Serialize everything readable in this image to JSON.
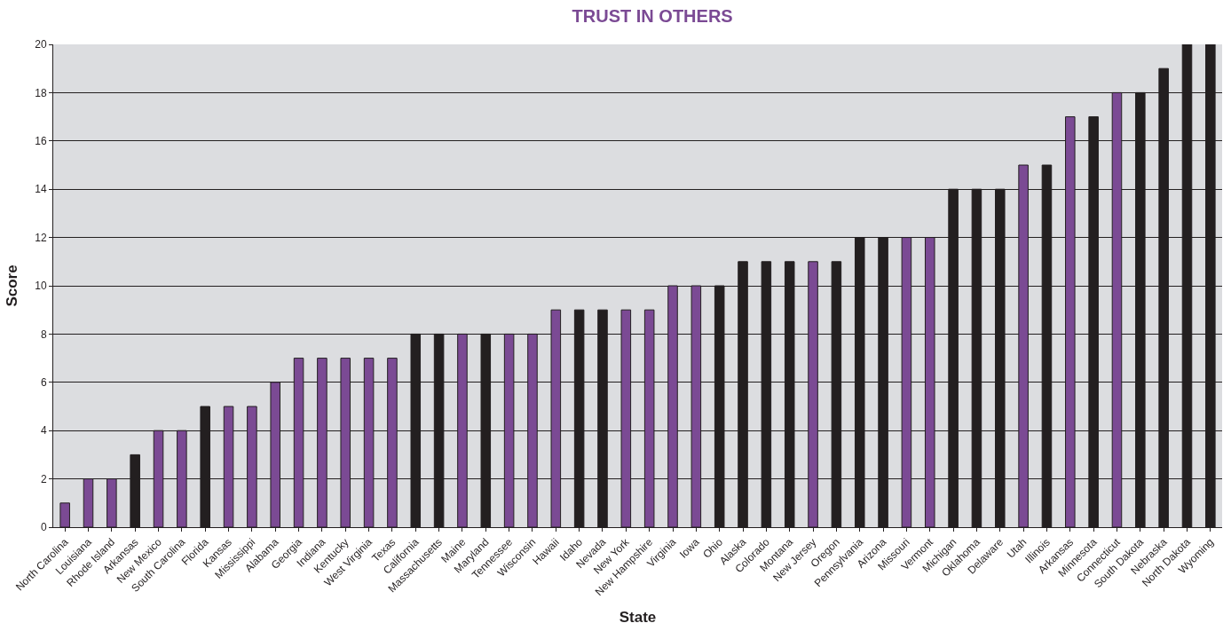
{
  "chart_data": {
    "type": "bar",
    "title": "TRUST IN OTHERS",
    "xlabel": "State",
    "ylabel": "Score",
    "categories": [
      "North Carolina",
      "Louisiana",
      "Rhode Island",
      "Arkansas",
      "New Mexico",
      "South Carolina",
      "Florida",
      "Kansas",
      "Mississippi",
      "Alabama",
      "Georgia",
      "Indiana",
      "Kentucky",
      "West Virginia",
      "Texas",
      "California",
      "Massachusetts",
      "Maine",
      "Maryland",
      "Tennessee",
      "Wisconsin",
      "Hawaii",
      "Idaho",
      "Nevada",
      "New York",
      "New Hampshire",
      "Virginia",
      "Iowa",
      "Ohio",
      "Alaska",
      "Colorado",
      "Montana",
      "New Jersey",
      "Oregon",
      "Pennsylvania",
      "Arizona",
      "Missouri",
      "Vermont",
      "Michigan",
      "Oklahoma",
      "Delaware",
      "Utah",
      "Illinois",
      "Arkansas",
      "Minnesota",
      "Connecticut",
      "South Dakota",
      "Nebraska",
      "North Dakota",
      "Wyoming"
    ],
    "values": [
      1,
      2,
      2,
      3,
      4,
      4,
      5,
      5,
      5,
      6,
      7,
      7,
      7,
      7,
      7,
      8,
      8,
      8,
      8,
      8,
      8,
      9,
      9,
      9,
      9,
      9,
      10,
      10,
      10,
      11,
      11,
      11,
      11,
      11,
      12,
      12,
      12,
      12,
      14,
      14,
      14,
      15,
      15,
      17,
      17,
      18,
      18,
      19,
      20,
      20
    ],
    "colors": [
      "#7b4a94",
      "#7b4a94",
      "#7b4a94",
      "#231f20",
      "#7b4a94",
      "#7b4a94",
      "#231f20",
      "#7b4a94",
      "#7b4a94",
      "#7b4a94",
      "#7b4a94",
      "#7b4a94",
      "#7b4a94",
      "#7b4a94",
      "#7b4a94",
      "#231f20",
      "#231f20",
      "#7b4a94",
      "#231f20",
      "#7b4a94",
      "#7b4a94",
      "#7b4a94",
      "#231f20",
      "#231f20",
      "#7b4a94",
      "#7b4a94",
      "#7b4a94",
      "#7b4a94",
      "#231f20",
      "#231f20",
      "#231f20",
      "#231f20",
      "#7b4a94",
      "#231f20",
      "#231f20",
      "#231f20",
      "#7b4a94",
      "#7b4a94",
      "#231f20",
      "#231f20",
      "#231f20",
      "#7b4a94",
      "#231f20",
      "#7b4a94",
      "#231f20",
      "#7b4a94",
      "#231f20",
      "#231f20",
      "#231f20",
      "#231f20"
    ],
    "ylim": [
      0,
      20
    ],
    "yticks": [
      0,
      2,
      4,
      6,
      8,
      10,
      12,
      14,
      16,
      18,
      20
    ],
    "grid": "y"
  }
}
